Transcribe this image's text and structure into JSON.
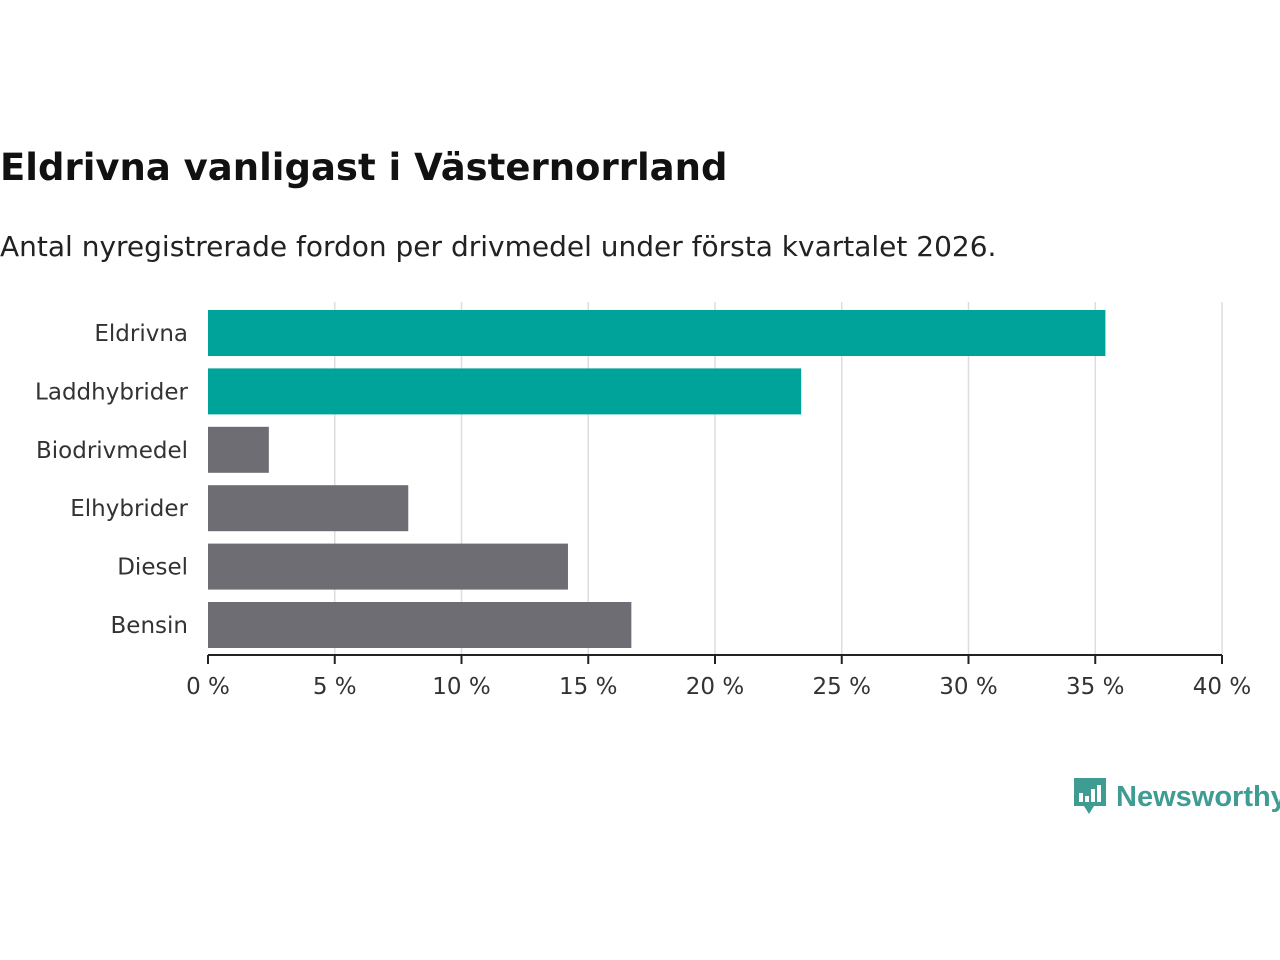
{
  "chart_data": {
    "type": "bar",
    "orientation": "horizontal",
    "title": "Eldrivna vanligast i Västernorrland",
    "subtitle": "Antal nyregistrerade fordon per drivmedel under första kvartalet 2026.",
    "categories": [
      "Eldrivna",
      "Laddhybrider",
      "Biodrivmedel",
      "Elhybrider",
      "Diesel",
      "Bensin"
    ],
    "values": [
      35.4,
      23.4,
      2.4,
      7.9,
      14.2,
      16.7
    ],
    "colors": [
      "#00a39a",
      "#00a39a",
      "#6e6d73",
      "#6e6d73",
      "#6e6d73",
      "#6e6d73"
    ],
    "xlim": [
      0,
      40
    ],
    "ticks": [
      0,
      5,
      10,
      15,
      20,
      25,
      30,
      35,
      40
    ],
    "tick_labels": [
      "0 %",
      "5 %",
      "10 %",
      "15 %",
      "20 %",
      "25 %",
      "30 %",
      "35 %",
      "40 %"
    ],
    "xlabel": "",
    "ylabel": "",
    "grid": true
  },
  "brand": {
    "name": "Newsworthy",
    "color": "#3e9c92",
    "icon": "newsworthy-logo-icon"
  }
}
